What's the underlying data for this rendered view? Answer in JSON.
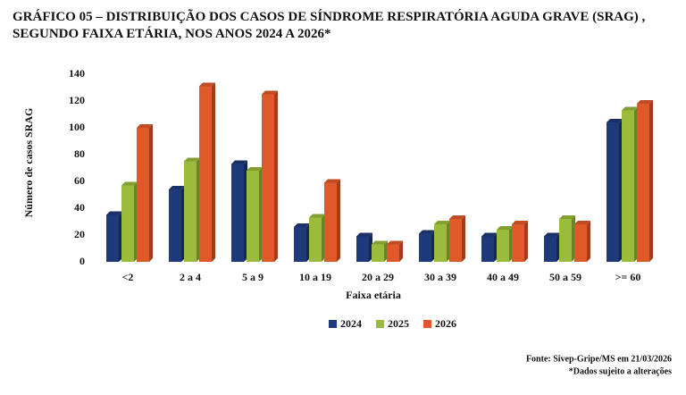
{
  "chart_data": {
    "type": "bar",
    "title": "GRÁFICO 05 – DISTRIBUIÇÃO DOS CASOS DE SÍNDROME RESPIRATÓRIA AGUDA GRAVE (SRAG) , SEGUNDO FAIXA ETÁRIA, NOS ANOS 2024 A 2026*",
    "x_label": "Faixa etária",
    "y_label": "Número de casos SRAG",
    "categories": [
      "<2",
      "2 a 4",
      "5 a 9",
      "10 a 19",
      "20 a 29",
      "30 a 39",
      "40 a 49",
      "50 a 59",
      ">= 60"
    ],
    "series": [
      {
        "name": "2024",
        "color": "#1f3a7a",
        "values": [
          35,
          54,
          73,
          26,
          19,
          21,
          19,
          19,
          104
        ]
      },
      {
        "name": "2025",
        "color": "#9bbb3a",
        "values": [
          57,
          75,
          68,
          33,
          13,
          28,
          24,
          32,
          113
        ]
      },
      {
        "name": "2026",
        "color": "#e0592a",
        "values": [
          100,
          131,
          125,
          59,
          13,
          32,
          28,
          28,
          118
        ]
      }
    ],
    "ylim": [
      0,
      140
    ],
    "yticks": [
      0,
      20,
      40,
      60,
      80,
      100,
      120,
      140
    ],
    "grid": false,
    "legend": "bottom",
    "source": "Fonte: Sivep-Gripe/MS em 21/03/2026",
    "note": "*Dados sujeito a alterações"
  }
}
